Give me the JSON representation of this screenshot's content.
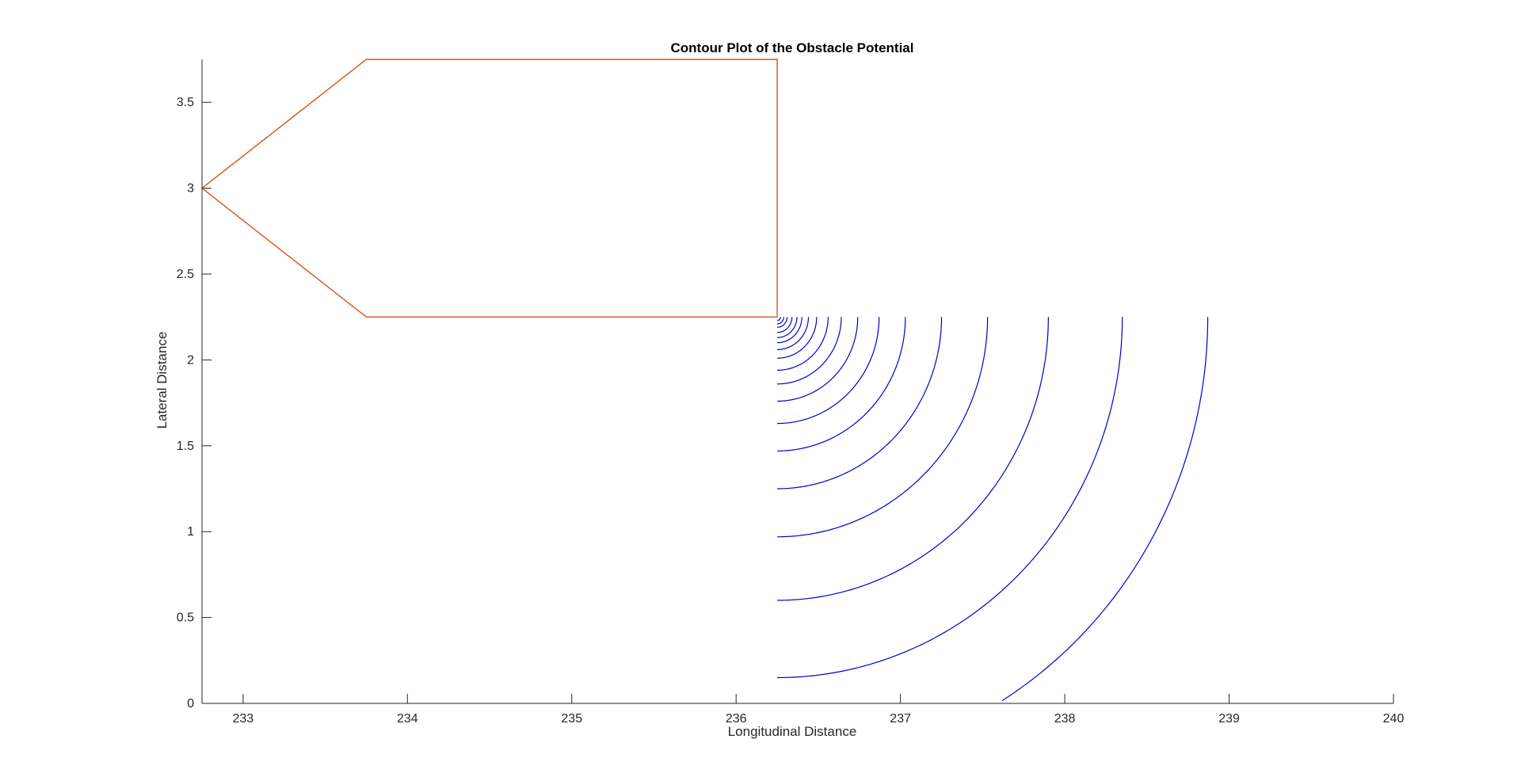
{
  "chart_data": {
    "type": "contour",
    "title": "Contour Plot of the Obstacle Potential",
    "xlabel": "Longitudinal Distance",
    "ylabel": "Lateral Distance",
    "xlim": [
      232.75,
      240
    ],
    "ylim": [
      0,
      3.75
    ],
    "grid": false,
    "legend": "none",
    "xticks": [
      233,
      234,
      235,
      236,
      237,
      238,
      239,
      240
    ],
    "yticks": [
      0,
      0.5,
      1,
      1.5,
      2,
      2.5,
      3,
      3.5
    ],
    "xtick_labels": [
      "233",
      "234",
      "235",
      "236",
      "237",
      "238",
      "239",
      "240"
    ],
    "ytick_labels": [
      "0",
      "0.5",
      "1",
      "1.5",
      "2",
      "2.5",
      "3",
      "3.5"
    ],
    "obstacle_polygon": {
      "color": "#d95319",
      "x": [
        232.75,
        233.75,
        236.25,
        236.25,
        233.75,
        232.75
      ],
      "y": [
        3,
        3.75,
        3.75,
        2.25,
        2.25,
        3
      ]
    },
    "contour_levels": {
      "color": "#0000cc",
      "center": [
        236.25,
        2.25
      ],
      "quadrant": "lower-right",
      "radii": [
        0.02,
        0.04,
        0.06,
        0.09,
        0.12,
        0.15,
        0.19,
        0.24,
        0.31,
        0.39,
        0.49,
        0.62,
        0.78,
        1.0,
        1.28,
        1.65,
        2.1,
        2.62
      ]
    }
  }
}
